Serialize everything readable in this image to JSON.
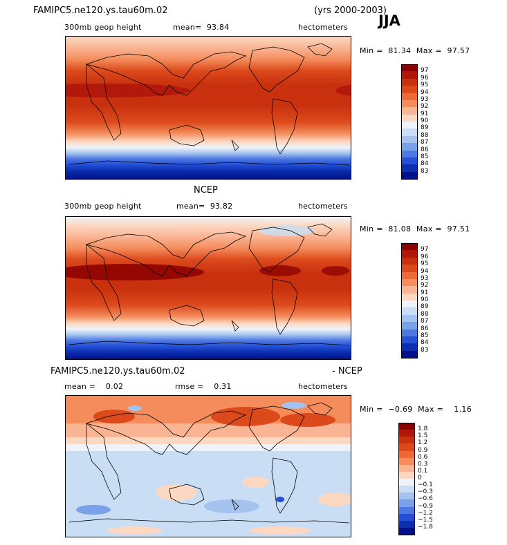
{
  "header": {
    "model_title": "FAMIPC5.ne120.ys.tau60m.02",
    "years": "(yrs 2000-2003)",
    "season": "JJA"
  },
  "panel1": {
    "field": "300mb geop height",
    "mean_label": "mean=",
    "mean_value": "93.84",
    "units": "hectometers",
    "min_label": "Min =",
    "min_value": "81.34",
    "max_label": "Max =",
    "max_value": "97.57",
    "levels": [
      "97",
      "96",
      "95",
      "94",
      "93",
      "92",
      "91",
      "90",
      "89",
      "88",
      "87",
      "86",
      "85",
      "84",
      "83"
    ],
    "colors": [
      "#8b0000",
      "#b0170a",
      "#c8300e",
      "#dc4a1c",
      "#ed6a35",
      "#f48c5c",
      "#f9b493",
      "#fcd8c2",
      "#eef3fb",
      "#c9ddf5",
      "#a3c2ee",
      "#7aa0e8",
      "#4d78e2",
      "#2550d6",
      "#0b2fb0",
      "#00108a"
    ]
  },
  "panel2": {
    "title": "NCEP",
    "field": "300mb geop height",
    "mean_label": "mean=",
    "mean_value": "93.82",
    "units": "hectometers",
    "min_label": "Min =",
    "min_value": "81.08",
    "max_label": "Max =",
    "max_value": "97.51",
    "levels": [
      "97",
      "96",
      "95",
      "94",
      "93",
      "92",
      "91",
      "90",
      "89",
      "88",
      "87",
      "86",
      "85",
      "84",
      "83"
    ]
  },
  "panel3": {
    "title_left": "FAMIPC5.ne120.ys.tau60m.02",
    "title_right": "- NCEP",
    "mean_label": "mean =",
    "mean_value": "0.02",
    "rmse_label": "rmse =",
    "rmse_value": "0.31",
    "units": "hectometers",
    "min_label": "Min =",
    "min_value": "−0.69",
    "max_label": "Max =",
    "max_value": "1.16",
    "levels": [
      "1.8",
      "1.5",
      "1.2",
      "0.9",
      "0.6",
      "0.3",
      "0.1",
      "0",
      "−0.1",
      "−0.3",
      "−0.6",
      "−0.9",
      "−1.2",
      "−1.5",
      "−1.8"
    ],
    "colors": [
      "#8b0000",
      "#b0170a",
      "#c8300e",
      "#dc4a1c",
      "#ed6a35",
      "#f48c5c",
      "#f9b493",
      "#fcd8c2",
      "#eef3fb",
      "#c9ddf5",
      "#a3c2ee",
      "#7aa0e8",
      "#4d78e2",
      "#2550d6",
      "#0b2fb0",
      "#00108a"
    ]
  }
}
